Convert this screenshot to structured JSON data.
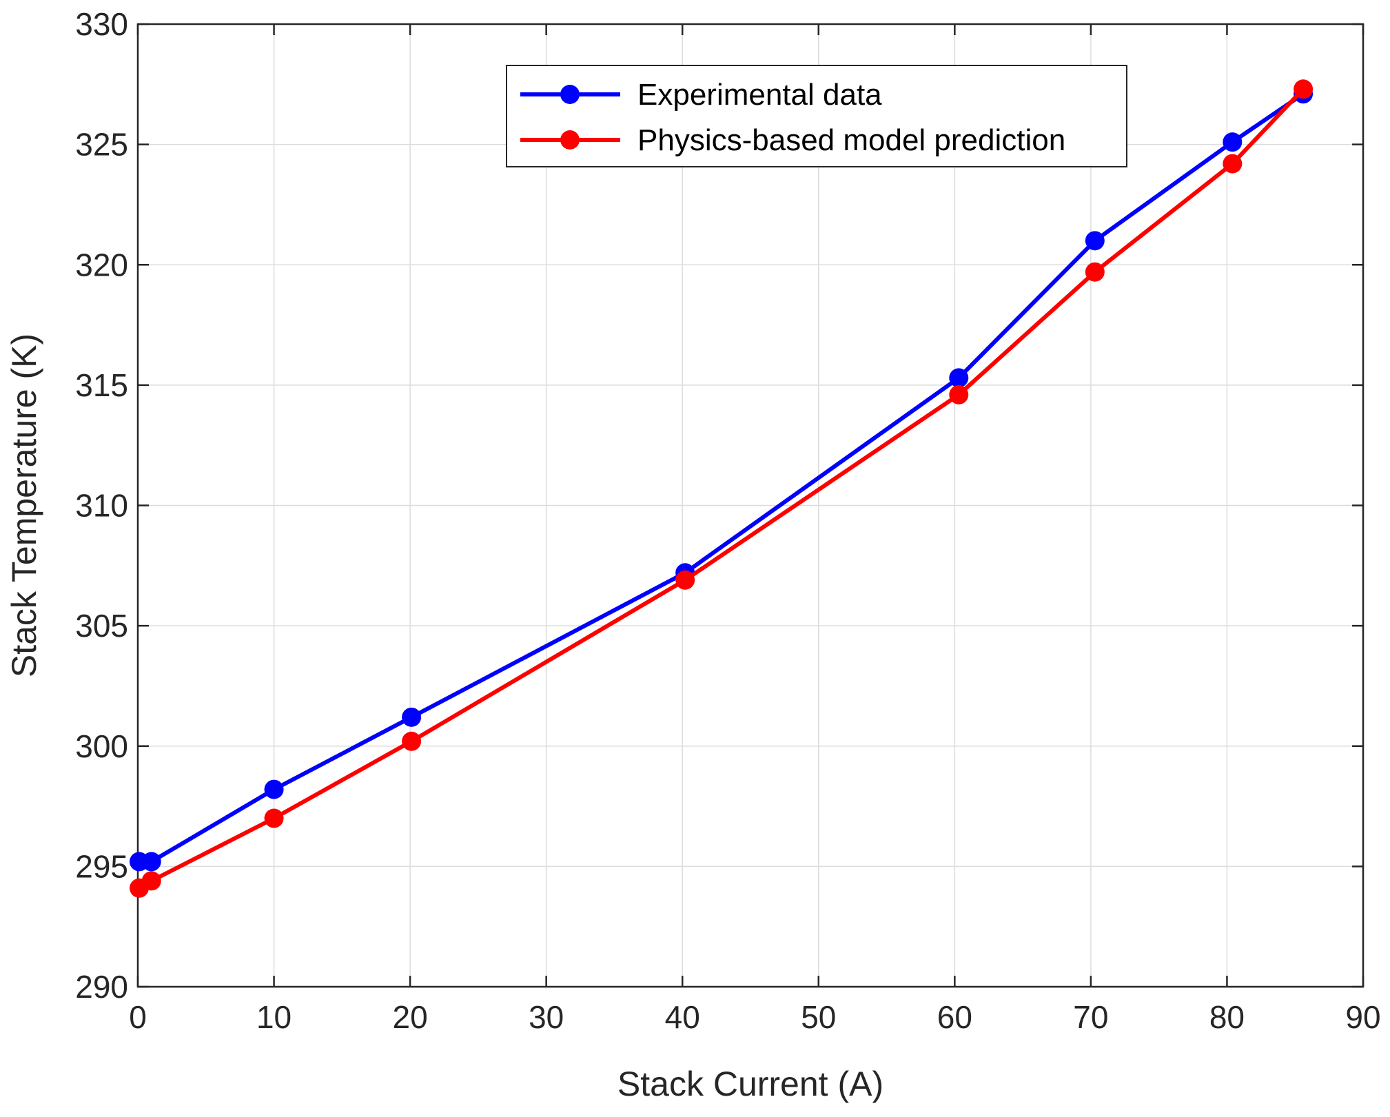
{
  "chart_data": {
    "type": "line",
    "title": "",
    "xlabel": "Stack Current (A)",
    "ylabel": "Stack Temperature (K)",
    "xlim": [
      0,
      90
    ],
    "ylim": [
      290,
      330
    ],
    "xticks": [
      0,
      10,
      20,
      30,
      40,
      50,
      60,
      70,
      80,
      90
    ],
    "yticks": [
      290,
      295,
      300,
      305,
      310,
      315,
      320,
      325,
      330
    ],
    "xtick_labels": [
      "0",
      "10",
      "20",
      "30",
      "40",
      "50",
      "60",
      "70",
      "80",
      "90"
    ],
    "ytick_labels": [
      "290",
      "295",
      "300",
      "305",
      "310",
      "315",
      "320",
      "325",
      "330"
    ],
    "grid": true,
    "legend_position": "top-right",
    "series": [
      {
        "name": "Experimental data",
        "color": "#0000ff",
        "x": [
          0.1,
          1.0,
          10.0,
          20.1,
          40.2,
          60.3,
          70.3,
          80.4,
          85.6
        ],
        "y": [
          295.2,
          295.2,
          298.2,
          301.2,
          307.2,
          315.3,
          321.0,
          325.1,
          327.1
        ]
      },
      {
        "name": "Physics-based model prediction",
        "color": "#ff0000",
        "x": [
          0.1,
          1.0,
          10.0,
          20.1,
          40.2,
          60.3,
          70.3,
          80.4,
          85.6
        ],
        "y": [
          294.1,
          294.4,
          297.0,
          300.2,
          306.9,
          314.6,
          319.7,
          324.2,
          327.3
        ]
      }
    ]
  }
}
